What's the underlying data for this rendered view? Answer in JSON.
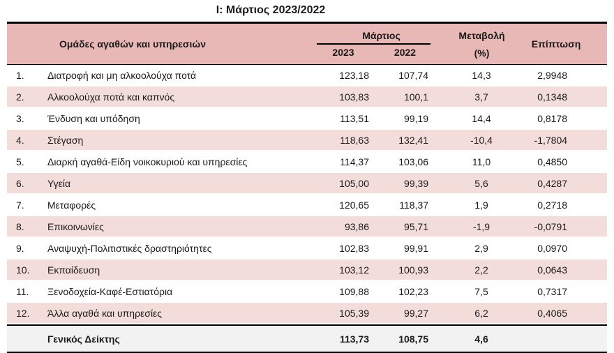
{
  "title": "Ι: Μάρτιος 2023/2022",
  "colors": {
    "header_bg": "#e8b8b6",
    "row_alt_bg": "#f2dddb",
    "footer_bg": "#f2f2f2",
    "border": "#000000",
    "text": "#1a1a1a"
  },
  "table": {
    "headers": {
      "groups": "Ομάδες αγαθών και υπηρεσιών",
      "month_group": "Μάρτιος",
      "year_1": "2023",
      "year_2": "2022",
      "change_line1": "Μεταβολή",
      "change_line2": "(%)",
      "impact": "Επίπτωση"
    },
    "rows": [
      {
        "num": "1.",
        "name": "Διατροφή και μη αλκοολούχα ποτά",
        "v2023": "123,18",
        "v2022": "107,74",
        "change": "14,3",
        "impact": "2,9948"
      },
      {
        "num": "2.",
        "name": "Αλκοολούχα ποτά και καπνός",
        "v2023": "103,83",
        "v2022": "100,1",
        "change": "3,7",
        "impact": "0,1348"
      },
      {
        "num": "3.",
        "name": "Ένδυση και υπόδηση",
        "v2023": "113,51",
        "v2022": "99,19",
        "change": "14,4",
        "impact": "0,8178"
      },
      {
        "num": "4.",
        "name": "Στέγαση",
        "v2023": "118,63",
        "v2022": "132,41",
        "change": "-10,4",
        "impact": "-1,7804"
      },
      {
        "num": "5.",
        "name": "Διαρκή αγαθά-Είδη νοικοκυριού και υπηρεσίες",
        "v2023": "114,37",
        "v2022": "103,06",
        "change": "11,0",
        "impact": "0,4850"
      },
      {
        "num": "6.",
        "name": "Υγεία",
        "v2023": "105,00",
        "v2022": "99,39",
        "change": "5,6",
        "impact": "0,4287"
      },
      {
        "num": "7.",
        "name": "Μεταφορές",
        "v2023": "120,65",
        "v2022": "118,37",
        "change": "1,9",
        "impact": "0,2718"
      },
      {
        "num": "8.",
        "name": "Επικοινωνίες",
        "v2023": "93,86",
        "v2022": "95,71",
        "change": "-1,9",
        "impact": "-0,0791"
      },
      {
        "num": "9.",
        "name": "Αναψυχή-Πολιτιστικές δραστηριότητες",
        "v2023": "102,83",
        "v2022": "99,91",
        "change": "2,9",
        "impact": "0,0970"
      },
      {
        "num": "10.",
        "name": "Εκπαίδευση",
        "v2023": "103,12",
        "v2022": "100,93",
        "change": "2,2",
        "impact": "0,0643"
      },
      {
        "num": "11.",
        "name": "Ξενοδοχεία-Καφέ-Εστιατόρια",
        "v2023": "109,88",
        "v2022": "102,23",
        "change": "7,5",
        "impact": "0,7317"
      },
      {
        "num": "12.",
        "name": "Άλλα αγαθά και υπηρεσίες",
        "v2023": "105,39",
        "v2022": "99,27",
        "change": "6,2",
        "impact": "0,4065"
      }
    ],
    "footer": {
      "label": "Γενικός Δείκτης",
      "v2023": "113,73",
      "v2022": "108,75",
      "change": "4,6",
      "impact": ""
    }
  }
}
